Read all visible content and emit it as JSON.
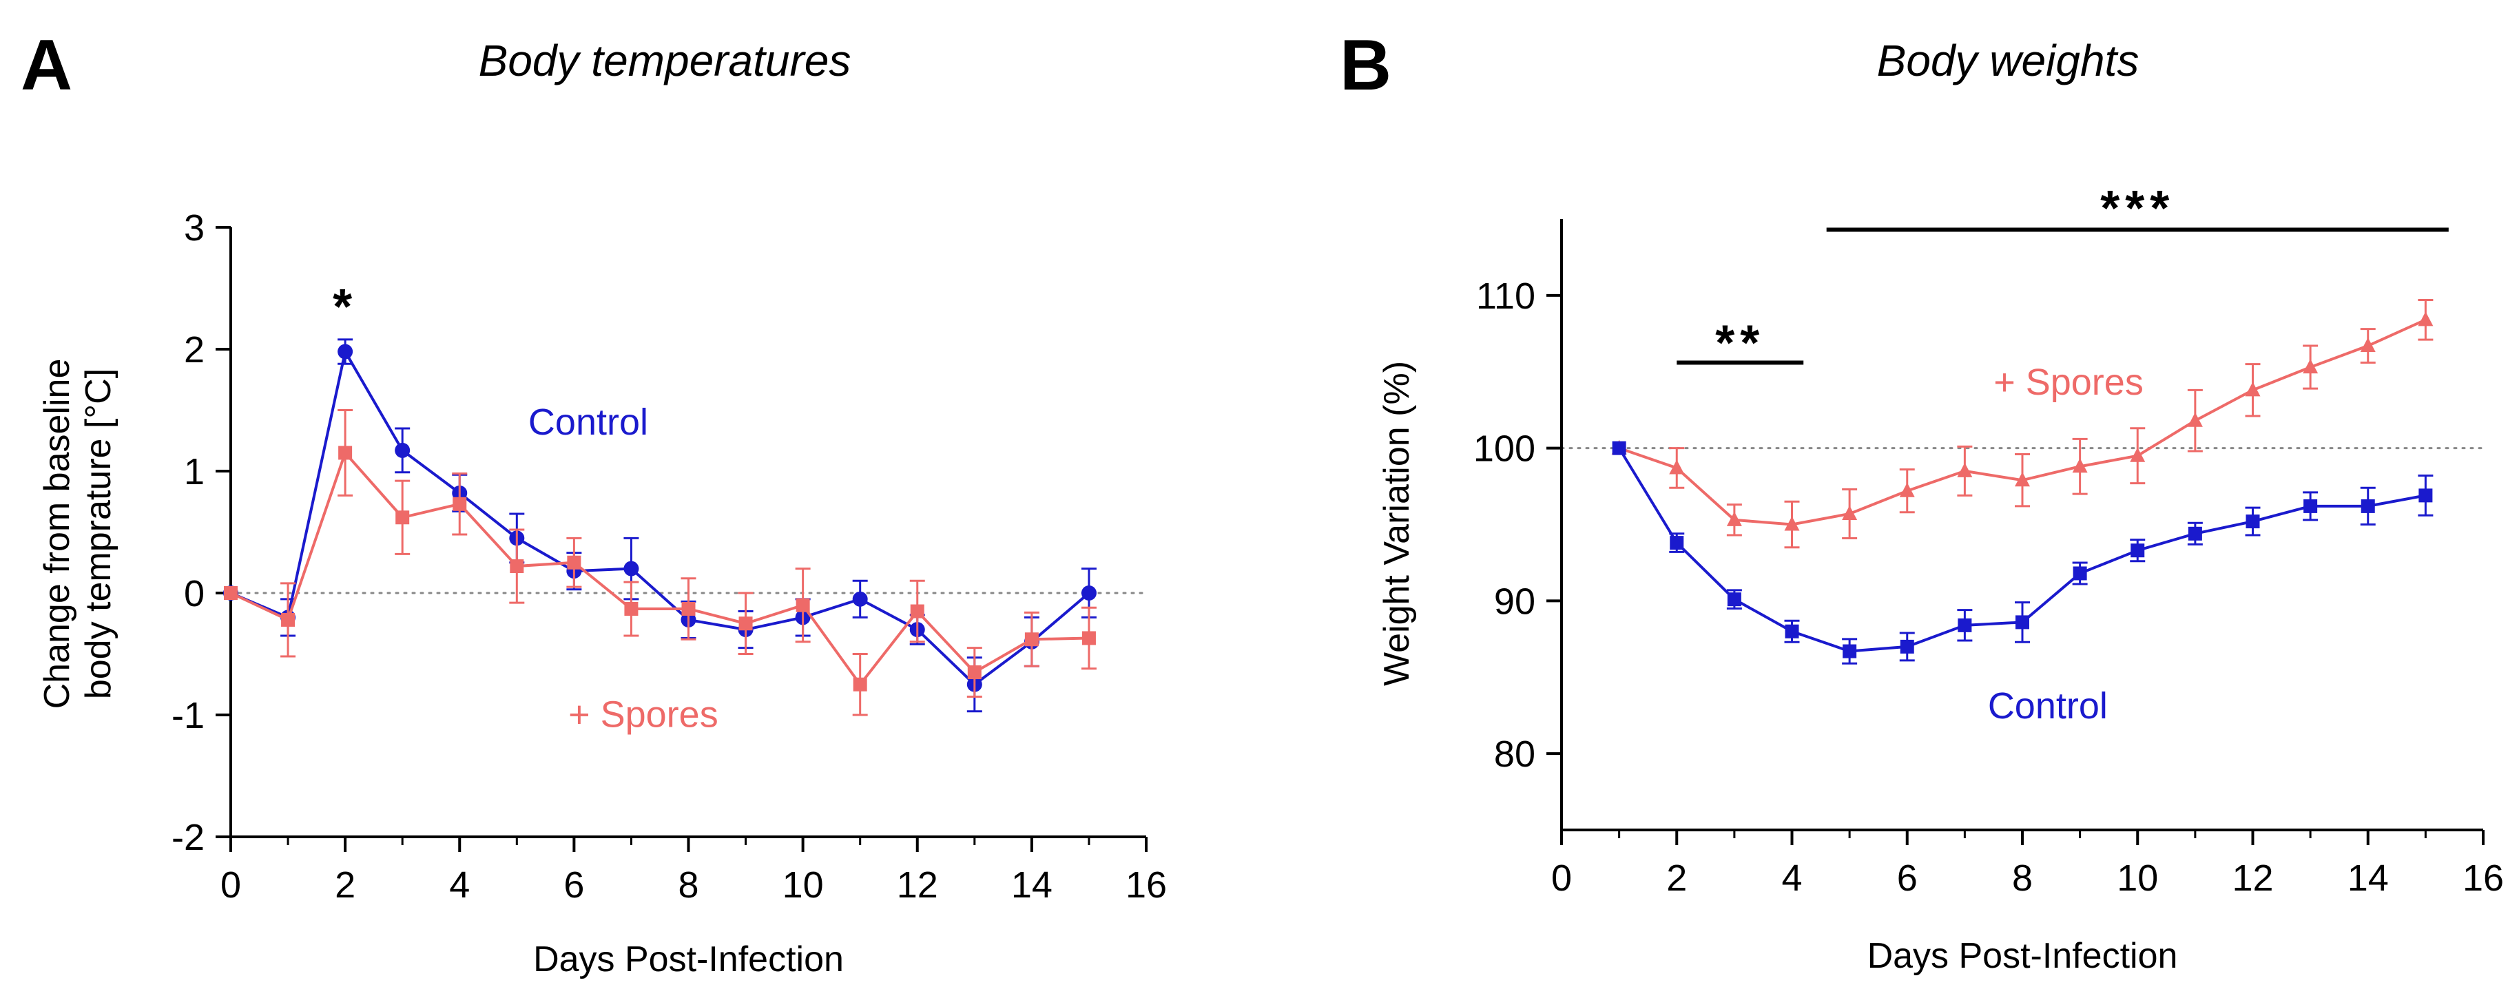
{
  "colors": {
    "control": "#1a1acd",
    "spores": "#ee6a68",
    "axis": "#000000",
    "reference": "#888888"
  },
  "chart_data": [
    {
      "panel": "A",
      "type": "line",
      "title": "Body temperatures",
      "xlabel": "Days Post-Infection",
      "ylabel": [
        "Change from baseline",
        "body temprature [°C]"
      ],
      "xlim": [
        0,
        16
      ],
      "ylim": [
        -2,
        3
      ],
      "xticks": [
        0,
        2,
        4,
        6,
        8,
        10,
        12,
        14,
        16
      ],
      "yticks": [
        -2,
        -1,
        0,
        1,
        2,
        3
      ],
      "reference_line": 0,
      "significance": [
        {
          "label": "*",
          "x": 2
        }
      ],
      "series": [
        {
          "name": "Control",
          "color_key": "control",
          "marker": "circle",
          "x": [
            0,
            1,
            2,
            3,
            4,
            5,
            6,
            7,
            8,
            9,
            10,
            11,
            12,
            13,
            14,
            15
          ],
          "y": [
            0,
            -0.2,
            1.98,
            1.17,
            0.82,
            0.45,
            0.18,
            0.2,
            -0.22,
            -0.3,
            -0.2,
            -0.05,
            -0.3,
            -0.75,
            -0.4,
            0
          ],
          "err": [
            0,
            0.15,
            0.1,
            0.18,
            0.15,
            0.2,
            0.15,
            0.25,
            0.15,
            0.15,
            0.15,
            0.15,
            0.12,
            0.22,
            0.2,
            0.2
          ],
          "label_position": {
            "x": 5.2,
            "y": 1.3
          }
        },
        {
          "name": "+ Spores",
          "color_key": "spores",
          "marker": "square",
          "x": [
            0,
            1,
            2,
            3,
            4,
            5,
            6,
            7,
            8,
            9,
            10,
            11,
            12,
            13,
            14,
            15
          ],
          "y": [
            0,
            -0.22,
            1.15,
            0.62,
            0.73,
            0.22,
            0.25,
            -0.13,
            -0.13,
            -0.25,
            -0.1,
            -0.75,
            -0.15,
            -0.65,
            -0.38,
            -0.37
          ],
          "err": [
            0,
            0.3,
            0.35,
            0.3,
            0.25,
            0.3,
            0.2,
            0.22,
            0.25,
            0.25,
            0.3,
            0.25,
            0.25,
            0.2,
            0.22,
            0.25
          ],
          "label_position": {
            "x": 5.9,
            "y": -1.1
          }
        }
      ]
    },
    {
      "panel": "B",
      "type": "line",
      "title": "Body weights",
      "xlabel": "Days Post-Infection",
      "ylabel": "Weight Variation (%)",
      "xlim": [
        0,
        16
      ],
      "ylim": [
        75,
        115
      ],
      "xticks": [
        0,
        2,
        4,
        6,
        8,
        10,
        12,
        14,
        16
      ],
      "yticks": [
        80,
        90,
        100,
        110
      ],
      "reference_line": 100,
      "significance": [
        {
          "label": "**",
          "x_start": 2,
          "x_end": 4.2,
          "y": 105.6,
          "label_y": 107.5
        },
        {
          "label": "***",
          "x_start": 4.6,
          "x_end": 15.4,
          "y": 114.3,
          "label_y": 116.3
        }
      ],
      "series": [
        {
          "name": "+ Spores",
          "color_key": "spores",
          "marker": "triangle",
          "x": [
            1,
            2,
            3,
            4,
            5,
            6,
            7,
            8,
            9,
            10,
            11,
            12,
            13,
            14,
            15
          ],
          "y": [
            100,
            98.7,
            95.3,
            95.0,
            95.7,
            97.2,
            98.5,
            97.9,
            98.8,
            99.5,
            101.8,
            103.8,
            105.3,
            106.7,
            108.4
          ],
          "err": [
            0,
            1.3,
            1.0,
            1.5,
            1.6,
            1.4,
            1.6,
            1.7,
            1.8,
            1.8,
            2.0,
            1.7,
            1.4,
            1.1,
            1.3
          ],
          "label_position": {
            "x": 7.5,
            "y": 103.5
          }
        },
        {
          "name": "Control",
          "color_key": "control",
          "marker": "square",
          "x": [
            1,
            2,
            3,
            4,
            5,
            6,
            7,
            8,
            9,
            10,
            11,
            12,
            13,
            14,
            15
          ],
          "y": [
            100,
            93.8,
            90.1,
            88.0,
            86.7,
            87.0,
            88.4,
            88.6,
            91.8,
            93.3,
            94.4,
            95.2,
            96.2,
            96.2,
            96.9
          ],
          "err": [
            0,
            0.6,
            0.6,
            0.7,
            0.8,
            0.9,
            1.0,
            1.3,
            0.7,
            0.7,
            0.7,
            0.9,
            0.9,
            1.2,
            1.3
          ],
          "label_position": {
            "x": 7.4,
            "y": 82.3
          }
        }
      ]
    }
  ]
}
